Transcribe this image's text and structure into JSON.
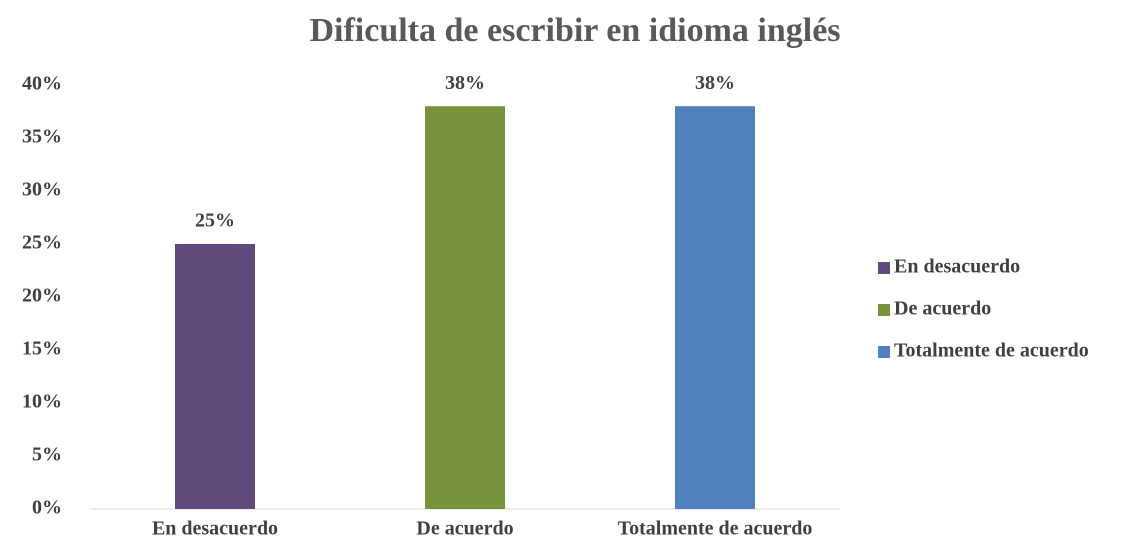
{
  "chart_data": {
    "type": "bar",
    "title": "Dificulta de escribir en idioma inglés",
    "categories": [
      "En desacuerdo",
      "De acuerdo",
      "Totalmente de acuerdo"
    ],
    "values": [
      25,
      38,
      38
    ],
    "value_labels": [
      "25%",
      "38%",
      "38%"
    ],
    "colors": [
      "#604a7b",
      "#77933c",
      "#4f81bd"
    ],
    "ylim": [
      0,
      40
    ],
    "yticks": [
      {
        "value": 0,
        "label": "0%"
      },
      {
        "value": 5,
        "label": "5%"
      },
      {
        "value": 10,
        "label": "10%"
      },
      {
        "value": 15,
        "label": "15%"
      },
      {
        "value": 20,
        "label": "20%"
      },
      {
        "value": 25,
        "label": "25%"
      },
      {
        "value": 30,
        "label": "30%"
      },
      {
        "value": 35,
        "label": "35%"
      },
      {
        "value": 40,
        "label": "40%"
      }
    ],
    "grid": false,
    "legend": "right"
  }
}
